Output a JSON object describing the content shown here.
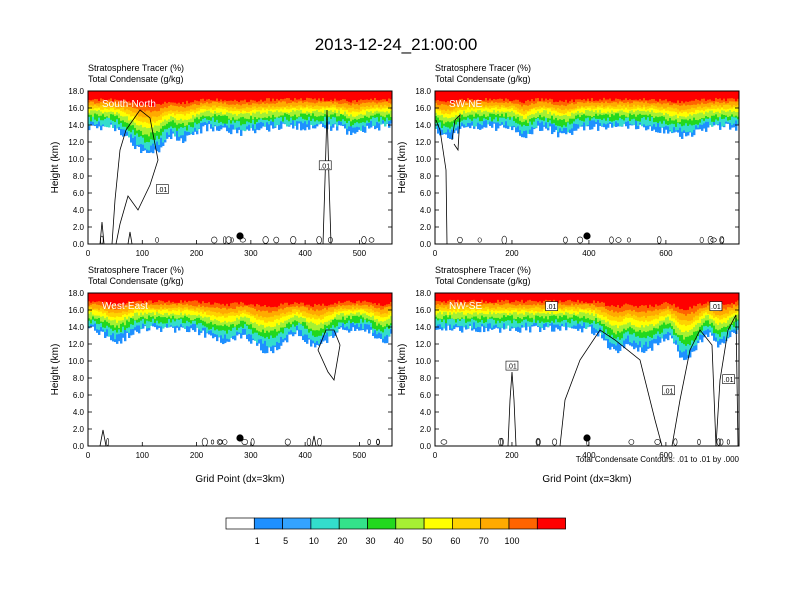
{
  "figure": {
    "title": "2013-12-24_21:00:00",
    "xlabel": "Grid Point (dx=3km)",
    "footnote": "Total Condensate Contours: .01 to .01 by .000"
  },
  "colorbar": {
    "colors": [
      "#ffffff",
      "#1e90ff",
      "#33a3ff",
      "#33ddcc",
      "#33e38a",
      "#22d81e",
      "#a6f033",
      "#ffff00",
      "#ffd200",
      "#ffaa00",
      "#ff6400",
      "#ff1e00",
      "#ff0000"
    ],
    "levels": [
      "1",
      "5",
      "10",
      "20",
      "30",
      "40",
      "50",
      "60",
      "70",
      "100"
    ]
  },
  "chart_data": [
    {
      "type": "heatmap",
      "panel": "South-North",
      "header": [
        "Stratosphere Tracer   (%)",
        "Total Condensate   (g/kg)"
      ],
      "ylabel": "Height (km)",
      "xlim": [
        0,
        560
      ],
      "ylim": [
        0,
        18
      ],
      "xticks": [
        "0",
        "100",
        "200",
        "300",
        "400",
        "500"
      ],
      "yticks": [
        "0.0",
        "2.0",
        "4.0",
        "6.0",
        "8.0",
        "10.0",
        "12.0",
        "14.0",
        "16.0",
        "18.0"
      ],
      "contour_labels": [
        ".01",
        ".01"
      ],
      "marker_x": 280
    },
    {
      "type": "heatmap",
      "panel": "SW-NE",
      "header": [
        "Stratosphere Tracer   (%)",
        "Total Condensate   (g/kg)"
      ],
      "ylabel": "Height (km)",
      "xlim": [
        0,
        790
      ],
      "ylim": [
        0,
        18
      ],
      "xticks": [
        "0",
        "200",
        "400",
        "600"
      ],
      "yticks": [
        "0.0",
        "2.0",
        "4.0",
        "6.0",
        "8.0",
        "10.0",
        "12.0",
        "14.0",
        "16.0",
        "18.0"
      ],
      "contour_labels": [],
      "marker_x": 395
    },
    {
      "type": "heatmap",
      "panel": "West-East",
      "header": [
        "Stratosphere Tracer   (%)",
        "Total Condensate   (g/kg)"
      ],
      "ylabel": "Height (km)",
      "xlim": [
        0,
        560
      ],
      "ylim": [
        0,
        18
      ],
      "xticks": [
        "0",
        "100",
        "200",
        "300",
        "400",
        "500"
      ],
      "yticks": [
        "0.0",
        "2.0",
        "4.0",
        "6.0",
        "8.0",
        "10.0",
        "12.0",
        "14.0",
        "16.0",
        "18.0"
      ],
      "contour_labels": [],
      "marker_x": 280
    },
    {
      "type": "heatmap",
      "panel": "NW-SE",
      "header": [
        "Stratosphere Tracer   (%)",
        "Total Condensate   (g/kg)"
      ],
      "ylabel": "Height (km)",
      "xlim": [
        0,
        790
      ],
      "ylim": [
        0,
        18
      ],
      "xticks": [
        "0",
        "200",
        "400",
        "600"
      ],
      "yticks": [
        "0.0",
        "2.0",
        "4.0",
        "6.0",
        "8.0",
        "10.0",
        "12.0",
        "14.0",
        "16.0",
        "18.0"
      ],
      "contour_labels": [
        ".01",
        ".01",
        ".01",
        ".01",
        ".01"
      ],
      "marker_x": 395
    }
  ]
}
